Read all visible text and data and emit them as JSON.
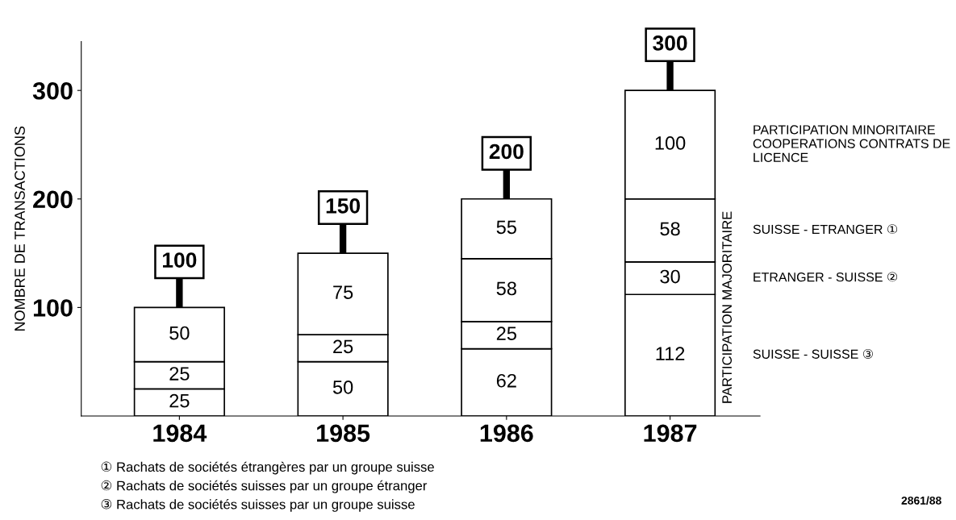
{
  "chart_data": {
    "type": "bar",
    "stacked": true,
    "ylabel": "NOMBRE DE TRANSACTIONS",
    "categories": [
      "1984",
      "1985",
      "1986",
      "1987"
    ],
    "series": [
      {
        "name": "SUISSE - SUISSE ③",
        "color": "#ffffff",
        "values": [
          25,
          50,
          62,
          112
        ]
      },
      {
        "name": "ETRANGER - SUISSE ②",
        "color": "#ffffff",
        "values": [
          25,
          25,
          25,
          30
        ]
      },
      {
        "name": "SUISSE - ETRANGER ①",
        "color": "#ffffff",
        "values": [
          50,
          75,
          58,
          58
        ]
      },
      {
        "name": "PARTICIPATION MINORITAIRE COOPERATIONS CONTRATS DE LICENCE",
        "color": "#ffffff",
        "values": [
          null,
          null,
          55,
          100
        ]
      }
    ],
    "ylim": [
      0,
      345
    ],
    "yticks": [
      100,
      200,
      300
    ],
    "grid": false,
    "legend": false,
    "data_labels": true,
    "totals": [
      "100",
      "150",
      "200",
      "300"
    ],
    "annotations": [
      "PARTICIPATION MAJORITAIRE",
      "① Rachats de sociétés étrangères par un groupe suisse",
      "② Rachats de sociétés suisses par un groupe étranger",
      "③ Rachats de sociétés suisses par un groupe suisse",
      "2861/88"
    ]
  }
}
